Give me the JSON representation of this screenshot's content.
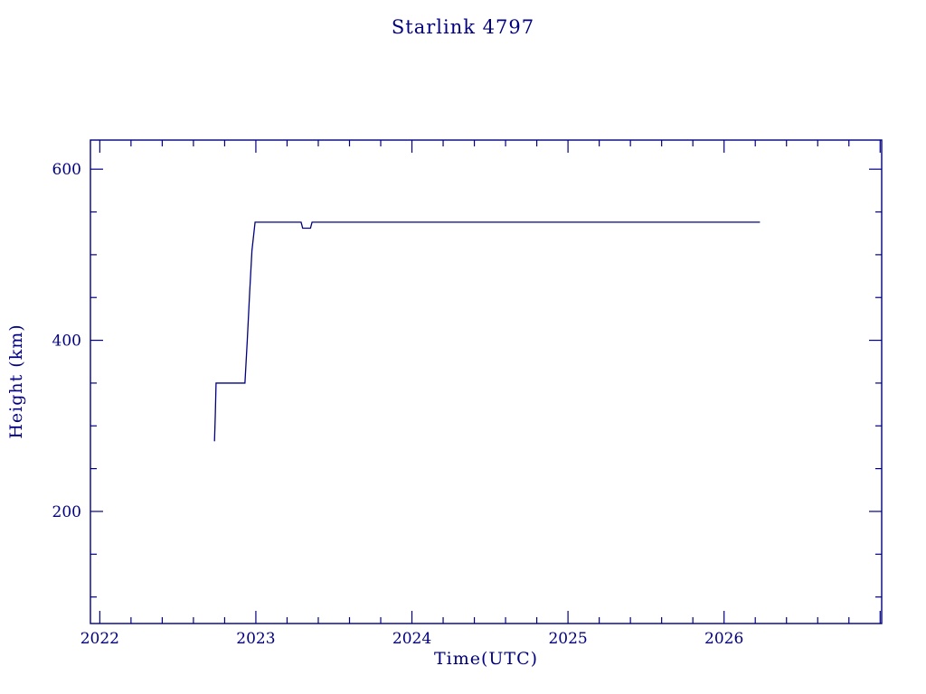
{
  "page": {
    "background": "#ffffff"
  },
  "chart_data": {
    "type": "line",
    "title": "Starlink 4797",
    "xlabel": "Time(UTC)",
    "ylabel": "Height (km)",
    "axis_color": "#000080",
    "line_color": "#000080",
    "xlim": [
      2021.94,
      2027.01
    ],
    "ylim": [
      69,
      634
    ],
    "xticks": [
      2022,
      2023,
      2024,
      2025,
      2026
    ],
    "xtick_labels": [
      "2022",
      "2023",
      "2024",
      "2025",
      "2026"
    ],
    "yticks": [
      200,
      400,
      600
    ],
    "ytick_labels": [
      "200",
      "400",
      "600"
    ],
    "x_minor_step": 0.2,
    "y_minor_step": 50,
    "grid": false,
    "legend": "none",
    "series": [
      {
        "name": "height-km",
        "points": [
          [
            2022.735,
            282
          ],
          [
            2022.74,
            312
          ],
          [
            2022.745,
            350
          ],
          [
            2022.93,
            350
          ],
          [
            2022.945,
            400
          ],
          [
            2022.96,
            455
          ],
          [
            2022.975,
            505
          ],
          [
            2022.995,
            538
          ],
          [
            2023.29,
            538
          ],
          [
            2023.3,
            531
          ],
          [
            2023.35,
            531
          ],
          [
            2023.36,
            538
          ],
          [
            2024.0,
            538
          ],
          [
            2025.0,
            538
          ],
          [
            2026.23,
            538
          ]
        ]
      }
    ]
  }
}
